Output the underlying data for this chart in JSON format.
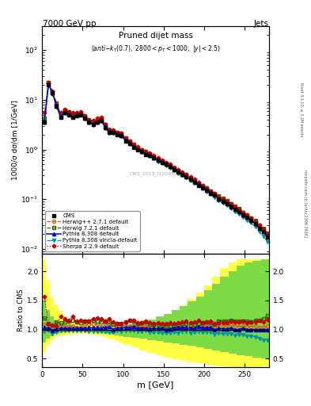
{
  "title_top": "7000 GeV pp",
  "title_right": "Jets",
  "plot_title": "Pruned dijet mass",
  "plot_subtitle": "(anti-k_{T}(0.7), 2800<p_{T}<1000, |y|<2.5)",
  "ylabel_main": "1000/σ dσ/dm [1/GeV]",
  "ylabel_ratio": "Ratio to CMS",
  "xlabel": "m [GeV]",
  "watermark": "CMS_2013_I1224539",
  "xlim": [
    0,
    280
  ],
  "ylim_main": [
    0.008,
    300
  ],
  "ylim_ratio": [
    0.35,
    2.3
  ],
  "ratio_yticks": [
    0.5,
    1.0,
    1.5,
    2.0
  ],
  "cms_x": [
    3,
    8,
    13,
    18,
    23,
    28,
    33,
    38,
    43,
    48,
    53,
    58,
    63,
    68,
    73,
    78,
    83,
    88,
    93,
    98,
    103,
    108,
    113,
    118,
    123,
    128,
    133,
    138,
    143,
    148,
    153,
    158,
    163,
    168,
    173,
    178,
    183,
    188,
    193,
    198,
    203,
    208,
    213,
    218,
    223,
    228,
    233,
    238,
    243,
    248,
    253,
    258,
    263,
    268,
    273,
    278
  ],
  "cms_y": [
    3.5,
    20.0,
    14.0,
    7.5,
    4.5,
    5.5,
    5.0,
    4.5,
    4.8,
    5.0,
    4.2,
    3.5,
    3.2,
    3.5,
    3.8,
    2.8,
    2.2,
    2.2,
    2.0,
    1.9,
    1.5,
    1.3,
    1.1,
    1.0,
    0.9,
    0.8,
    0.75,
    0.68,
    0.6,
    0.55,
    0.5,
    0.45,
    0.4,
    0.35,
    0.31,
    0.28,
    0.25,
    0.22,
    0.19,
    0.17,
    0.15,
    0.13,
    0.12,
    0.1,
    0.09,
    0.082,
    0.071,
    0.063,
    0.056,
    0.048,
    0.043,
    0.037,
    0.032,
    0.026,
    0.022,
    0.017
  ],
  "herwig271_x": [
    3,
    8,
    13,
    18,
    23,
    28,
    33,
    38,
    43,
    48,
    53,
    58,
    63,
    68,
    73,
    78,
    83,
    88,
    93,
    98,
    103,
    108,
    113,
    118,
    123,
    128,
    133,
    138,
    143,
    148,
    153,
    158,
    163,
    168,
    173,
    178,
    183,
    188,
    193,
    198,
    203,
    208,
    213,
    218,
    223,
    228,
    233,
    238,
    243,
    248,
    253,
    258,
    263,
    268,
    273,
    278
  ],
  "herwig271_y": [
    3.8,
    21.5,
    13.5,
    8.5,
    4.8,
    5.8,
    5.3,
    4.8,
    5.0,
    5.2,
    4.5,
    3.8,
    3.5,
    3.8,
    4.0,
    3.0,
    2.4,
    2.3,
    2.1,
    2.0,
    1.6,
    1.38,
    1.17,
    1.04,
    0.94,
    0.84,
    0.77,
    0.7,
    0.61,
    0.56,
    0.5,
    0.455,
    0.41,
    0.36,
    0.32,
    0.29,
    0.255,
    0.225,
    0.2,
    0.18,
    0.16,
    0.14,
    0.125,
    0.107,
    0.096,
    0.088,
    0.077,
    0.067,
    0.059,
    0.051,
    0.045,
    0.039,
    0.034,
    0.027,
    0.023,
    0.018
  ],
  "herwig721_x": [
    3,
    8,
    13,
    18,
    23,
    28,
    33,
    38,
    43,
    48,
    53,
    58,
    63,
    68,
    73,
    78,
    83,
    88,
    93,
    98,
    103,
    108,
    113,
    118,
    123,
    128,
    133,
    138,
    143,
    148,
    153,
    158,
    163,
    168,
    173,
    178,
    183,
    188,
    193,
    198,
    203,
    208,
    213,
    218,
    223,
    228,
    233,
    238,
    243,
    248,
    253,
    258,
    263,
    268,
    273,
    278
  ],
  "herwig721_y": [
    4.2,
    22.0,
    14.5,
    8.5,
    5.0,
    6.2,
    5.7,
    5.2,
    5.4,
    5.6,
    4.8,
    4.0,
    3.7,
    4.0,
    4.3,
    3.2,
    2.5,
    2.4,
    2.2,
    2.1,
    1.7,
    1.5,
    1.26,
    1.1,
    1.0,
    0.9,
    0.82,
    0.74,
    0.65,
    0.59,
    0.53,
    0.48,
    0.43,
    0.38,
    0.34,
    0.31,
    0.27,
    0.24,
    0.21,
    0.19,
    0.17,
    0.145,
    0.13,
    0.115,
    0.103,
    0.094,
    0.082,
    0.072,
    0.064,
    0.055,
    0.049,
    0.042,
    0.037,
    0.03,
    0.026,
    0.021
  ],
  "pythia8_x": [
    3,
    8,
    13,
    18,
    23,
    28,
    33,
    38,
    43,
    48,
    53,
    58,
    63,
    68,
    73,
    78,
    83,
    88,
    93,
    98,
    103,
    108,
    113,
    118,
    123,
    128,
    133,
    138,
    143,
    148,
    153,
    158,
    163,
    168,
    173,
    178,
    183,
    188,
    193,
    198,
    203,
    208,
    213,
    218,
    223,
    228,
    233,
    238,
    243,
    248,
    253,
    258,
    263,
    268,
    273,
    278
  ],
  "pythia8_y": [
    3.6,
    20.5,
    13.8,
    7.6,
    4.6,
    5.6,
    5.1,
    4.6,
    4.9,
    5.1,
    4.3,
    3.6,
    3.3,
    3.6,
    3.9,
    2.9,
    2.3,
    2.2,
    2.05,
    1.95,
    1.55,
    1.35,
    1.15,
    1.02,
    0.92,
    0.82,
    0.76,
    0.69,
    0.61,
    0.56,
    0.5,
    0.455,
    0.41,
    0.36,
    0.32,
    0.29,
    0.255,
    0.225,
    0.2,
    0.175,
    0.155,
    0.135,
    0.12,
    0.102,
    0.091,
    0.083,
    0.073,
    0.063,
    0.056,
    0.049,
    0.043,
    0.037,
    0.032,
    0.026,
    0.022,
    0.017
  ],
  "pythia8v_x": [
    3,
    8,
    13,
    18,
    23,
    28,
    33,
    38,
    43,
    48,
    53,
    58,
    63,
    68,
    73,
    78,
    83,
    88,
    93,
    98,
    103,
    108,
    113,
    118,
    123,
    128,
    133,
    138,
    143,
    148,
    153,
    158,
    163,
    168,
    173,
    178,
    183,
    188,
    193,
    198,
    203,
    208,
    213,
    218,
    223,
    228,
    233,
    238,
    243,
    248,
    253,
    258,
    263,
    268,
    273,
    278
  ],
  "pythia8v_y": [
    3.4,
    19.5,
    13.0,
    7.2,
    4.4,
    5.4,
    4.9,
    4.4,
    4.7,
    4.9,
    4.1,
    3.4,
    3.1,
    3.4,
    3.7,
    2.7,
    2.1,
    2.1,
    1.95,
    1.85,
    1.48,
    1.28,
    1.08,
    0.97,
    0.87,
    0.78,
    0.72,
    0.65,
    0.57,
    0.52,
    0.47,
    0.425,
    0.38,
    0.33,
    0.3,
    0.27,
    0.235,
    0.21,
    0.185,
    0.162,
    0.143,
    0.124,
    0.11,
    0.094,
    0.083,
    0.076,
    0.066,
    0.057,
    0.051,
    0.044,
    0.038,
    0.033,
    0.028,
    0.022,
    0.018,
    0.014
  ],
  "sherpa_x": [
    3,
    8,
    13,
    18,
    23,
    28,
    33,
    38,
    43,
    48,
    53,
    58,
    63,
    68,
    73,
    78,
    83,
    88,
    93,
    98,
    103,
    108,
    113,
    118,
    123,
    128,
    133,
    138,
    143,
    148,
    153,
    158,
    163,
    168,
    173,
    178,
    183,
    188,
    193,
    198,
    203,
    208,
    213,
    218,
    223,
    228,
    233,
    238,
    243,
    248,
    253,
    258,
    263,
    268,
    273,
    278
  ],
  "sherpa_y": [
    5.5,
    22.0,
    15.0,
    8.0,
    5.5,
    6.5,
    5.8,
    5.5,
    5.5,
    5.8,
    4.8,
    4.0,
    3.8,
    4.2,
    4.5,
    3.2,
    2.6,
    2.5,
    2.2,
    2.1,
    1.7,
    1.5,
    1.28,
    1.12,
    1.0,
    0.92,
    0.84,
    0.75,
    0.67,
    0.61,
    0.55,
    0.5,
    0.44,
    0.39,
    0.35,
    0.32,
    0.28,
    0.25,
    0.22,
    0.19,
    0.17,
    0.148,
    0.132,
    0.112,
    0.1,
    0.092,
    0.081,
    0.071,
    0.063,
    0.055,
    0.048,
    0.042,
    0.036,
    0.03,
    0.025,
    0.02
  ],
  "band_edges": [
    0,
    5,
    10,
    15,
    20,
    25,
    30,
    35,
    40,
    45,
    50,
    55,
    60,
    65,
    70,
    75,
    80,
    85,
    90,
    95,
    100,
    110,
    120,
    130,
    140,
    150,
    160,
    170,
    180,
    190,
    200,
    210,
    220,
    230,
    240,
    250,
    260,
    270,
    280
  ],
  "yellow_lo": [
    0.6,
    0.72,
    0.82,
    0.87,
    0.88,
    0.9,
    0.91,
    0.92,
    0.93,
    0.93,
    0.93,
    0.92,
    0.91,
    0.9,
    0.89,
    0.87,
    0.85,
    0.83,
    0.8,
    0.77,
    0.73,
    0.69,
    0.64,
    0.6,
    0.56,
    0.52,
    0.49,
    0.46,
    0.44,
    0.42,
    0.4,
    0.38,
    0.37,
    0.36,
    0.36,
    0.36,
    0.36,
    0.37,
    0.37
  ],
  "yellow_hi": [
    2.2,
    1.85,
    1.55,
    1.42,
    1.32,
    1.23,
    1.18,
    1.15,
    1.13,
    1.12,
    1.11,
    1.1,
    1.09,
    1.08,
    1.07,
    1.06,
    1.05,
    1.05,
    1.05,
    1.06,
    1.07,
    1.09,
    1.12,
    1.16,
    1.21,
    1.27,
    1.34,
    1.42,
    1.52,
    1.63,
    1.76,
    1.9,
    2.05,
    2.15,
    2.2,
    2.2,
    2.2,
    2.2,
    2.2
  ],
  "green_lo": [
    0.78,
    0.84,
    0.89,
    0.92,
    0.94,
    0.95,
    0.96,
    0.97,
    0.97,
    0.97,
    0.97,
    0.96,
    0.96,
    0.95,
    0.94,
    0.93,
    0.92,
    0.91,
    0.9,
    0.89,
    0.87,
    0.86,
    0.84,
    0.82,
    0.8,
    0.78,
    0.76,
    0.74,
    0.72,
    0.7,
    0.67,
    0.64,
    0.61,
    0.58,
    0.56,
    0.54,
    0.52,
    0.51,
    0.51
  ],
  "green_hi": [
    1.5,
    1.33,
    1.23,
    1.16,
    1.12,
    1.09,
    1.07,
    1.06,
    1.05,
    1.04,
    1.04,
    1.03,
    1.03,
    1.03,
    1.03,
    1.03,
    1.04,
    1.04,
    1.05,
    1.06,
    1.08,
    1.1,
    1.13,
    1.17,
    1.22,
    1.27,
    1.33,
    1.4,
    1.48,
    1.57,
    1.67,
    1.78,
    1.9,
    2.0,
    2.1,
    2.15,
    2.18,
    2.2,
    2.2
  ],
  "color_cms": "#000000",
  "color_herwig271": "#cc6622",
  "color_herwig721": "#336600",
  "color_pythia8": "#0000cc",
  "color_pythia8v": "#009999",
  "color_sherpa": "#cc0000",
  "color_yellow": "#ffff44",
  "color_green": "#44cc44",
  "bg_color": "#ffffff"
}
